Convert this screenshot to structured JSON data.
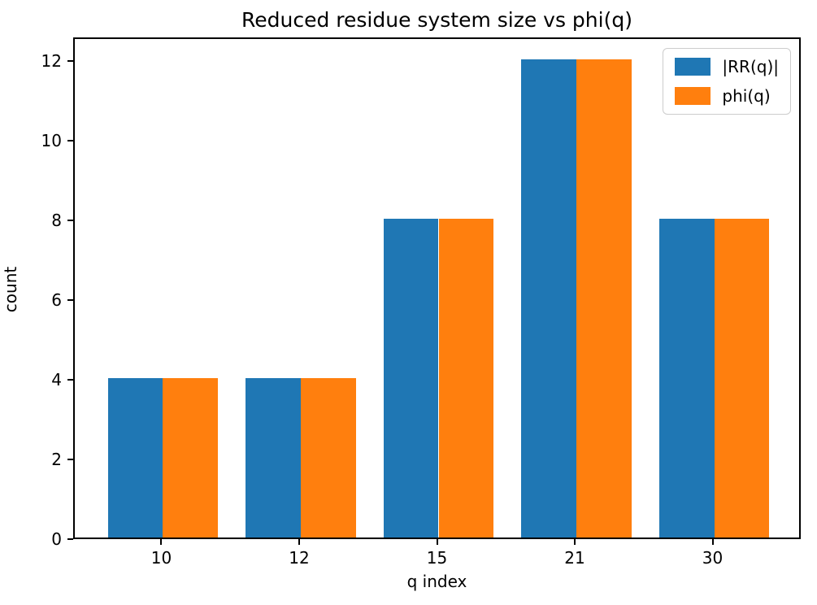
{
  "chart_data": {
    "type": "bar",
    "title": "Reduced residue system size vs phi(q)",
    "xlabel": "q index",
    "ylabel": "count",
    "categories": [
      "10",
      "12",
      "15",
      "21",
      "30"
    ],
    "series": [
      {
        "name": "|RR(q)|",
        "color": "#1f77b4",
        "values": [
          4,
          4,
          8,
          12,
          8
        ]
      },
      {
        "name": "phi(q)",
        "color": "#ff7f0e",
        "values": [
          4,
          4,
          8,
          12,
          8
        ]
      }
    ],
    "bar_width": 0.4,
    "ylim": [
      0,
      12.6
    ],
    "yticks": [
      0,
      2,
      4,
      6,
      8,
      10,
      12
    ],
    "grid": false,
    "legend_position": "upper right",
    "axis_color": "#000000",
    "background_color": "#ffffff"
  }
}
